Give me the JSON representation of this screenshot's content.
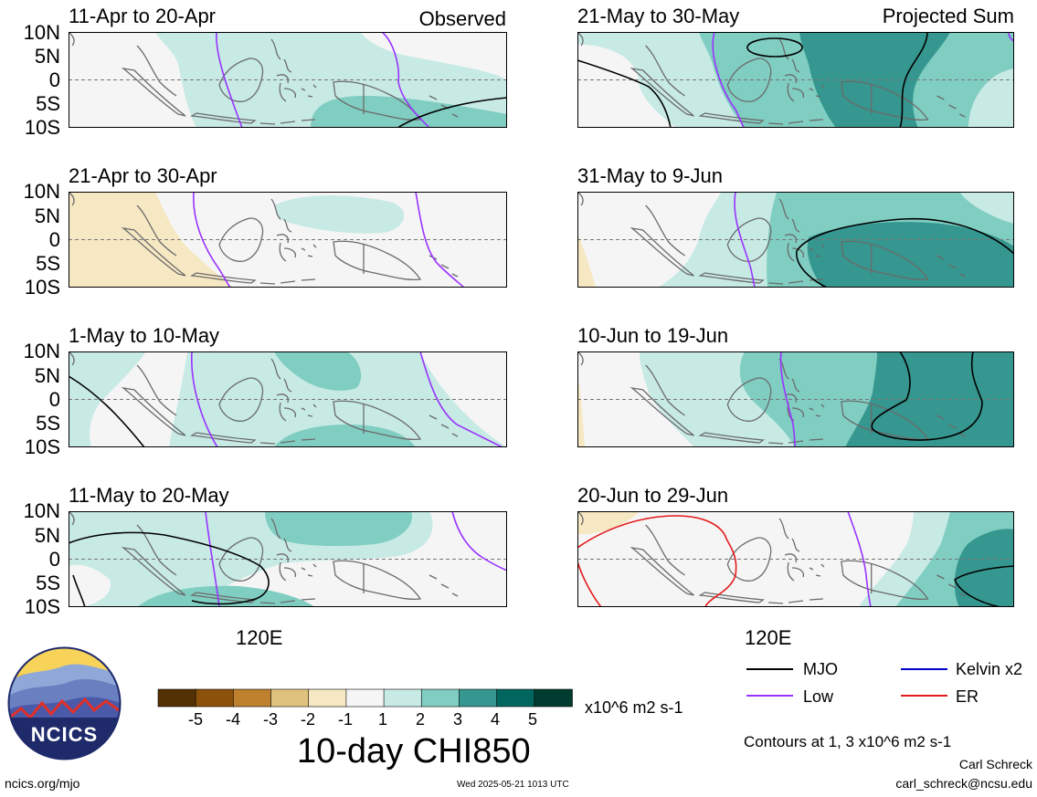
{
  "panels": [
    {
      "title": "11-Apr to 20-Apr",
      "tag": "Observed",
      "lat_labels": [
        "10N",
        "5N",
        "0",
        "5S",
        "10S"
      ]
    },
    {
      "title": "21-Apr to 30-Apr",
      "lat_labels": [
        "10N",
        "5N",
        "0",
        "5S",
        "10S"
      ]
    },
    {
      "title": "1-May to 10-May",
      "lat_labels": [
        "10N",
        "5N",
        "0",
        "5S",
        "10S"
      ]
    },
    {
      "title": "11-May to 20-May",
      "lat_labels": [
        "10N",
        "5N",
        "0",
        "5S",
        "10S"
      ]
    },
    {
      "title": "21-May to 30-May",
      "tag": "Projected Sum"
    },
    {
      "title": "31-May to 9-Jun"
    },
    {
      "title": "10-Jun to 19-Jun"
    },
    {
      "title": "20-Jun to 29-Jun"
    }
  ],
  "lon_label": "120E",
  "colorbar": {
    "ticks": [
      "-5",
      "-4",
      "-3",
      "-2",
      "-1",
      "1",
      "2",
      "3",
      "4",
      "5"
    ],
    "units": "x10^6 m2 s-1",
    "colors": [
      "#543005",
      "#8c510a",
      "#bf812d",
      "#dfc27d",
      "#f6e8c3",
      "#f5f5f5",
      "#c7eae5",
      "#80cdc1",
      "#35978f",
      "#01665e",
      "#003c30"
    ]
  },
  "main_title": "10-day CHI850",
  "legend": {
    "items": [
      {
        "label": "MJO",
        "color": "#000000"
      },
      {
        "label": "Kelvin x2",
        "color": "#0000cc"
      },
      {
        "label": "Low",
        "color": "#9933ff"
      },
      {
        "label": "ER",
        "color": "#e41a1c"
      }
    ]
  },
  "contour_note": "Contours at 1, 3 x10^6 m2 s-1",
  "author": "Carl Schreck",
  "email": "carl_schreck@ncsu.edu",
  "logo_text": "NCICS",
  "site": "ncics.org/mjo",
  "timestamp": "Wed 2025-05-21 1013 UTC"
}
